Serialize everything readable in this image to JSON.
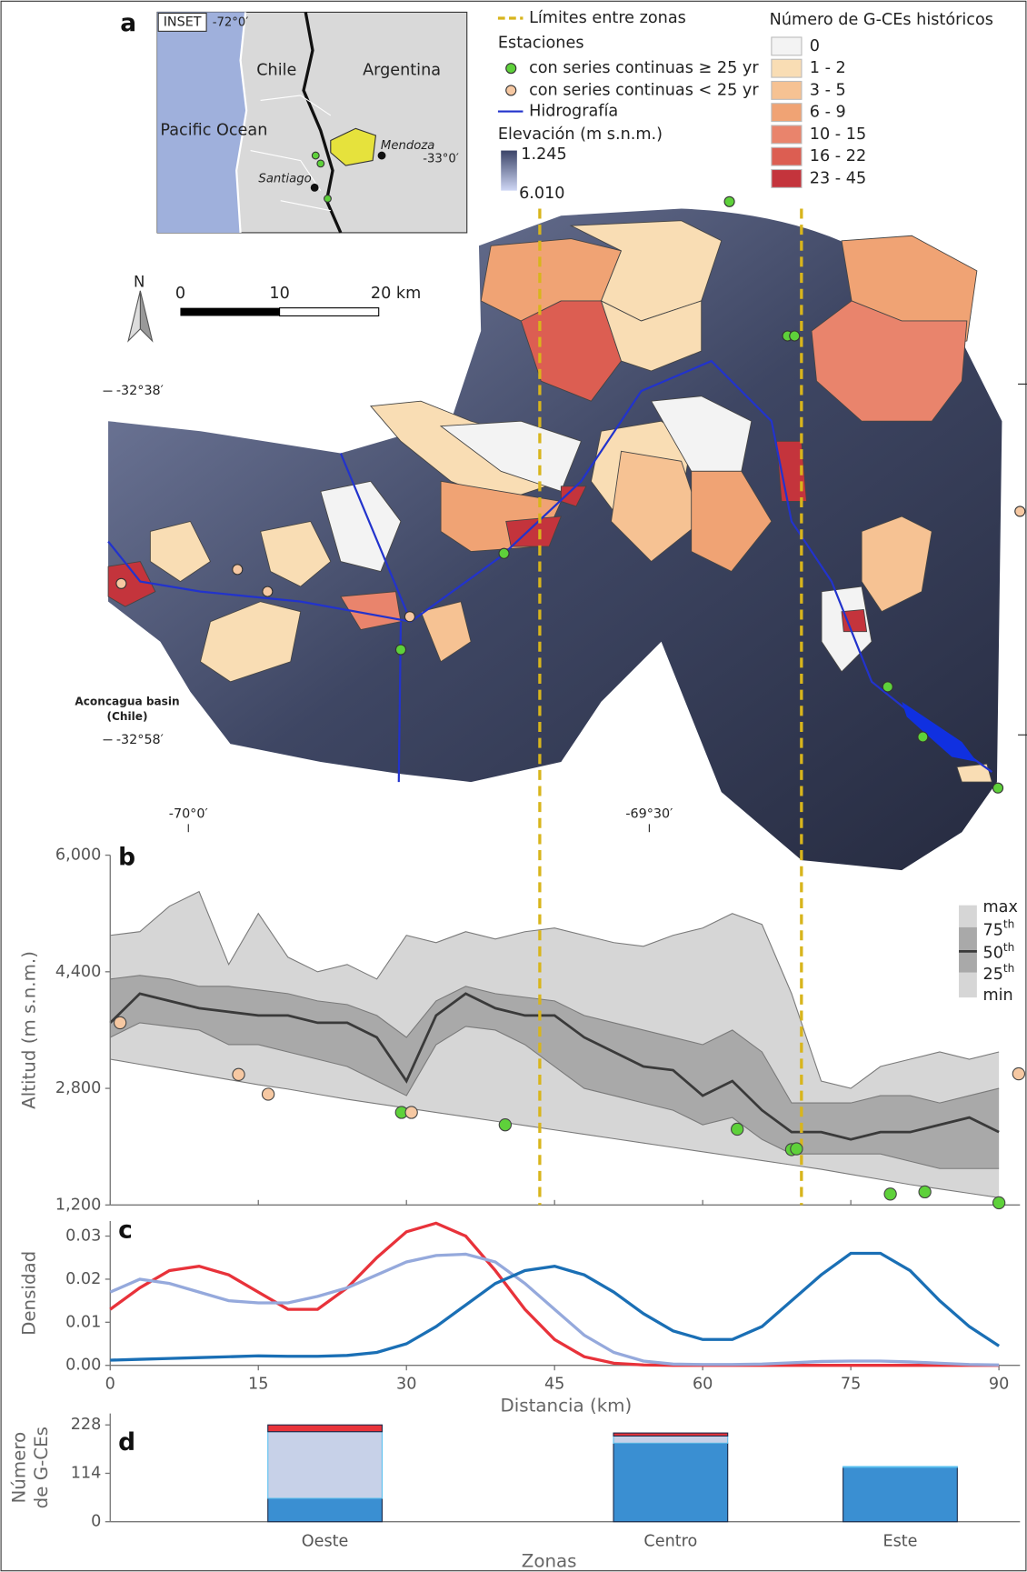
{
  "map": {
    "panel": "a",
    "inset": {
      "label": "INSET",
      "lon_label": "-72°0′",
      "lat_label": "-33°0′",
      "places": [
        "Chile",
        "Argentina",
        "Pacific Ocean",
        "Mendoza",
        "Santiago"
      ]
    },
    "north": "N",
    "scale_labels": [
      "0",
      "10",
      "20 km"
    ],
    "lat_labels": [
      "-32°38′",
      "-32°58′"
    ],
    "lon_labels": [
      "-70°0′",
      "-69°30′"
    ],
    "basin_label": [
      "Aconcagua basin",
      "(Chile)"
    ],
    "legend": {
      "zone_limits": "Límites entre zonas",
      "stations_title": "Estaciones",
      "stations": [
        {
          "label": "con series continuas ≥ 25 yr",
          "color": "#5ed13a"
        },
        {
          "label": "con series continuas < 25 yr",
          "color": "#f6c8a2"
        }
      ],
      "hydro": "Hidrografía",
      "elevation_title": "Elevación (m s.n.m.)",
      "elevation_labels": [
        "1.245",
        "6.010"
      ]
    },
    "gce_legend": {
      "title": "Número de G-CEs históricos",
      "classes": [
        {
          "label": "0",
          "color": "#f3f3f3"
        },
        {
          "label": "1 - 2",
          "color": "#f9ddb4"
        },
        {
          "label": "3 - 5",
          "color": "#f6c293"
        },
        {
          "label": "6 - 9",
          "color": "#f0a374"
        },
        {
          "label": "10 - 15",
          "color": "#e9846c"
        },
        {
          "label": "16 - 22",
          "color": "#dc5e52"
        },
        {
          "label": "23 - 45",
          "color": "#c4343c"
        }
      ]
    }
  },
  "chart_data": [
    {
      "type": "band",
      "panel": "b",
      "ylabel": "Altitud (m s.n.m.)",
      "x": [
        0,
        3,
        6,
        9,
        12,
        15,
        18,
        21,
        24,
        27,
        30,
        33,
        36,
        39,
        42,
        45,
        48,
        51,
        54,
        57,
        60,
        63,
        66,
        69,
        72,
        75,
        78,
        81,
        84,
        87,
        90
      ],
      "xlim": [
        0,
        90
      ],
      "xticks": [
        0,
        15,
        30,
        45,
        60,
        75,
        90
      ],
      "ylim": [
        1200,
        6000
      ],
      "yticks": [
        {
          "value": 1200,
          "label": "1,200"
        },
        {
          "value": 2800,
          "label": "2,800"
        },
        {
          "value": 4400,
          "label": "4,400"
        },
        {
          "value": 6000,
          "label": "6,000"
        }
      ],
      "series": [
        {
          "name": "max",
          "color": "#d6d6d6",
          "values": [
            4900,
            4950,
            5300,
            5500,
            4500,
            5200,
            4600,
            4400,
            4500,
            4300,
            4900,
            4800,
            4950,
            4850,
            4950,
            5000,
            4900,
            4800,
            4750,
            4900,
            5000,
            5200,
            5050,
            4100,
            2900,
            2800,
            3100,
            3200,
            3300,
            3200,
            3300
          ]
        },
        {
          "name": "75th",
          "color": "#a9a9a9",
          "values": [
            4300,
            4350,
            4300,
            4200,
            4200,
            4150,
            4100,
            4000,
            3950,
            3800,
            3500,
            4000,
            4200,
            4100,
            4050,
            4000,
            3800,
            3700,
            3600,
            3500,
            3400,
            3600,
            3300,
            2600,
            2600,
            2600,
            2700,
            2700,
            2600,
            2700,
            2800
          ]
        },
        {
          "name": "50th",
          "color": "#3a3a3a",
          "values": [
            3700,
            4100,
            4000,
            3900,
            3850,
            3800,
            3800,
            3700,
            3700,
            3500,
            2900,
            3800,
            4100,
            3900,
            3800,
            3800,
            3500,
            3300,
            3100,
            3050,
            2700,
            2900,
            2500,
            2200,
            2200,
            2100,
            2200,
            2200,
            2300,
            2400,
            2200
          ]
        },
        {
          "name": "25th",
          "color": "#a9a9a9",
          "values": [
            3500,
            3700,
            3650,
            3600,
            3400,
            3400,
            3300,
            3200,
            3100,
            2900,
            2700,
            3400,
            3650,
            3600,
            3400,
            3100,
            2800,
            2700,
            2600,
            2500,
            2300,
            2400,
            2100,
            1900,
            1900,
            1900,
            1900,
            1800,
            1700,
            1700,
            1700
          ]
        },
        {
          "name": "min",
          "color": "#d6d6d6",
          "values": [
            3200,
            3130,
            3060,
            2990,
            2920,
            2850,
            2790,
            2720,
            2650,
            2590,
            2530,
            2470,
            2410,
            2350,
            2290,
            2230,
            2170,
            2110,
            2050,
            1990,
            1930,
            1870,
            1810,
            1750,
            1690,
            1620,
            1550,
            1480,
            1420,
            1360,
            1300
          ]
        }
      ],
      "points": [
        {
          "color": "#5ed13a",
          "x": [
            29.5,
            40,
            63.5,
            69,
            69.5,
            79,
            82.5,
            90
          ],
          "values": [
            2470,
            2300,
            2240,
            1960,
            1970,
            1350,
            1380,
            1230
          ]
        },
        {
          "color": "#f6c8a2",
          "x": [
            1,
            13,
            16,
            30.5,
            92
          ],
          "values": [
            3700,
            2990,
            2720,
            2470,
            3000
          ]
        }
      ],
      "zone_limits": [
        43.5,
        70
      ],
      "zone_limit_color": "#d8b51c"
    },
    {
      "type": "line",
      "panel": "c",
      "xlabel": "Distancia (km)",
      "ylabel": "Densidad",
      "x": [
        0,
        3,
        6,
        9,
        12,
        15,
        18,
        21,
        24,
        27,
        30,
        33,
        36,
        39,
        42,
        45,
        48,
        51,
        54,
        57,
        60,
        63,
        66,
        69,
        72,
        75,
        78,
        81,
        84,
        87,
        90
      ],
      "xlim": [
        0,
        90
      ],
      "xticks": [
        0,
        15,
        30,
        45,
        60,
        75,
        90
      ],
      "ylim": [
        0,
        0.0335
      ],
      "yticks": [
        {
          "value": 0,
          "label": "0.00"
        },
        {
          "value": 0.01,
          "label": "0.01"
        },
        {
          "value": 0.02,
          "label": "0.02"
        },
        {
          "value": 0.03,
          "label": "0.03"
        }
      ],
      "series": [
        {
          "color": "#e8323a",
          "values": [
            0.013,
            0.018,
            0.022,
            0.023,
            0.021,
            0.017,
            0.013,
            0.013,
            0.018,
            0.025,
            0.031,
            0.033,
            0.03,
            0.022,
            0.013,
            0.006,
            0.002,
            0.0005,
            0.0001,
            0,
            0,
            0,
            0,
            0,
            0,
            0,
            0,
            0,
            0,
            0,
            0
          ]
        },
        {
          "color": "#95a9dc",
          "values": [
            0.017,
            0.02,
            0.019,
            0.017,
            0.015,
            0.0145,
            0.0145,
            0.016,
            0.018,
            0.021,
            0.024,
            0.0255,
            0.0258,
            0.024,
            0.019,
            0.013,
            0.007,
            0.003,
            0.001,
            0.0003,
            0.0002,
            0.0002,
            0.0003,
            0.0006,
            0.0009,
            0.001,
            0.001,
            0.0008,
            0.0005,
            0.0002,
            0.0001
          ]
        },
        {
          "color": "#1a6fb5",
          "values": [
            0.0012,
            0.0014,
            0.0016,
            0.0018,
            0.002,
            0.0022,
            0.0021,
            0.0021,
            0.0023,
            0.003,
            0.005,
            0.009,
            0.014,
            0.019,
            0.022,
            0.023,
            0.021,
            0.017,
            0.012,
            0.008,
            0.006,
            0.006,
            0.009,
            0.015,
            0.021,
            0.026,
            0.026,
            0.022,
            0.015,
            0.009,
            0.0045
          ]
        }
      ]
    },
    {
      "type": "stacked-bar",
      "panel": "d",
      "xlabel": "Zonas",
      "ylabel": [
        "Número",
        "de G-CEs"
      ],
      "categories": [
        "Oeste",
        "Centro",
        "Este"
      ],
      "ylim": [
        0,
        255
      ],
      "yticks": [
        0,
        114,
        228
      ],
      "series": [
        {
          "color": "#3a8fd2",
          "values": [
            55,
            185,
            128
          ]
        },
        {
          "color": "#c7d1e8",
          "values": [
            157,
            17,
            2
          ]
        },
        {
          "color": "#e8333a",
          "values": [
            16,
            7,
            0
          ]
        }
      ]
    }
  ]
}
